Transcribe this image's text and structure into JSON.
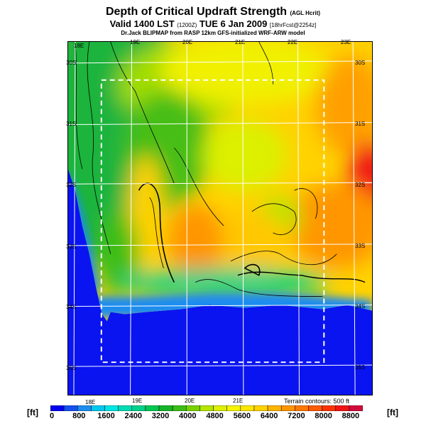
{
  "title": {
    "main": "Depth of Critical Updraft Strength",
    "main_suffix": "(AGL Hcrit)",
    "valid": "Valid 1400 LST",
    "valid_zone": "(1200Z)",
    "valid_date": "TUE 6 Jan 2009",
    "valid_suffix": "[18hrFcst@2254z]",
    "source": "Dr.Jack BLIPMAP from RASP 12km GFS-initialized WRF-ARW model"
  },
  "map": {
    "lon_labels_top": [
      "18E",
      "19E",
      "20E",
      "21E",
      "22E",
      "23E"
    ],
    "lon_labels_bottom": [
      "18E",
      "19E",
      "20E",
      "21E"
    ],
    "lat_labels_left": [
      "30S",
      "31S",
      "32S",
      "33S",
      "34S",
      "35S"
    ],
    "lat_labels_right": [
      "30S",
      "31S",
      "32S",
      "33S",
      "34S",
      "35S"
    ],
    "terrain_note": "Terrain contours: 500 ft"
  },
  "colorbar": {
    "unit": "[ft]",
    "labels": [
      "0",
      "800",
      "1600",
      "2400",
      "3200",
      "4000",
      "4800",
      "5600",
      "6400",
      "7200",
      "8000",
      "8800"
    ],
    "colors": [
      "#0000f0",
      "#1450f0",
      "#1e8cf0",
      "#00c8f0",
      "#00e6e6",
      "#00dcb4",
      "#00d28c",
      "#00c850",
      "#14b428",
      "#3cbe14",
      "#78d200",
      "#b4e600",
      "#dcf000",
      "#f5f500",
      "#ffe600",
      "#ffd200",
      "#ffb400",
      "#ff9600",
      "#ff7800",
      "#ff5a00",
      "#ff3200",
      "#f01414",
      "#d20a3c"
    ]
  }
}
